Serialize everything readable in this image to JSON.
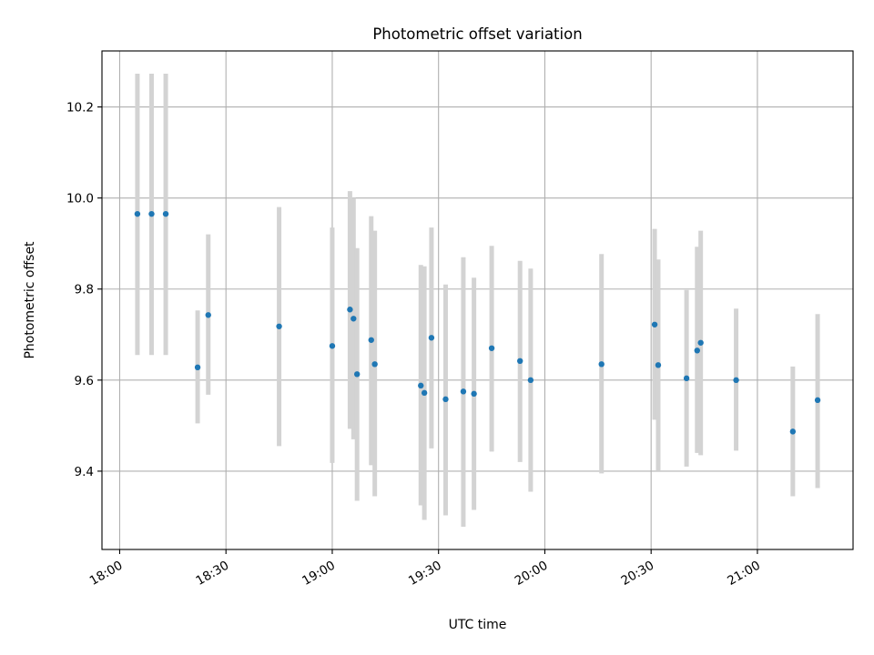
{
  "chart_data": {
    "type": "scatter",
    "title": "Photometric offset variation",
    "xlabel": "UTC time",
    "ylabel": "Photometric offset",
    "x_ticks": [
      "18:00",
      "18:30",
      "19:00",
      "19:30",
      "20:00",
      "20:30",
      "21:00"
    ],
    "x_tick_rotation_deg": 30,
    "xlim": [
      "17:55",
      "21:27"
    ],
    "y_ticks": [
      "9.4",
      "9.6",
      "9.8",
      "10.0",
      "10.2"
    ],
    "ylim": [
      9.228,
      10.323
    ],
    "grid": true,
    "colors": {
      "point": "#1f77b4",
      "errorbar": "#d3d3d3",
      "grid": "#b0b0b0",
      "axis": "#000000"
    },
    "series": [
      {
        "points": [
          {
            "x": "18:05",
            "y": 9.965,
            "low": 9.655,
            "high": 10.273
          },
          {
            "x": "18:09",
            "y": 9.965,
            "low": 9.655,
            "high": 10.273
          },
          {
            "x": "18:13",
            "y": 9.965,
            "low": 9.655,
            "high": 10.273
          },
          {
            "x": "18:22",
            "y": 9.628,
            "low": 9.505,
            "high": 9.753
          },
          {
            "x": "18:25",
            "y": 9.743,
            "low": 9.568,
            "high": 9.92
          },
          {
            "x": "18:45",
            "y": 9.718,
            "low": 9.455,
            "high": 9.98
          },
          {
            "x": "19:00",
            "y": 9.675,
            "low": 9.418,
            "high": 9.935
          },
          {
            "x": "19:05",
            "y": 9.755,
            "low": 9.493,
            "high": 10.015
          },
          {
            "x": "19:06",
            "y": 9.735,
            "low": 9.47,
            "high": 10.0
          },
          {
            "x": "19:07",
            "y": 9.613,
            "low": 9.335,
            "high": 9.89
          },
          {
            "x": "19:11",
            "y": 9.688,
            "low": 9.413,
            "high": 9.96
          },
          {
            "x": "19:12",
            "y": 9.635,
            "low": 9.345,
            "high": 9.928
          },
          {
            "x": "19:25",
            "y": 9.588,
            "low": 9.325,
            "high": 9.853
          },
          {
            "x": "19:26",
            "y": 9.572,
            "low": 9.293,
            "high": 9.85
          },
          {
            "x": "19:28",
            "y": 9.693,
            "low": 9.45,
            "high": 9.935
          },
          {
            "x": "19:32",
            "y": 9.558,
            "low": 9.303,
            "high": 9.81
          },
          {
            "x": "19:37",
            "y": 9.575,
            "low": 9.278,
            "high": 9.87
          },
          {
            "x": "19:40",
            "y": 9.57,
            "low": 9.315,
            "high": 9.825
          },
          {
            "x": "19:45",
            "y": 9.67,
            "low": 9.443,
            "high": 9.895
          },
          {
            "x": "19:53",
            "y": 9.642,
            "low": 9.42,
            "high": 9.862
          },
          {
            "x": "19:56",
            "y": 9.6,
            "low": 9.355,
            "high": 9.845
          },
          {
            "x": "20:16",
            "y": 9.635,
            "low": 9.395,
            "high": 9.877
          },
          {
            "x": "20:31",
            "y": 9.722,
            "low": 9.513,
            "high": 9.932
          },
          {
            "x": "20:32",
            "y": 9.633,
            "low": 9.4,
            "high": 9.865
          },
          {
            "x": "20:40",
            "y": 9.604,
            "low": 9.41,
            "high": 9.798
          },
          {
            "x": "20:43",
            "y": 9.665,
            "low": 9.44,
            "high": 9.893
          },
          {
            "x": "20:44",
            "y": 9.682,
            "low": 9.435,
            "high": 9.928
          },
          {
            "x": "20:54",
            "y": 9.6,
            "low": 9.445,
            "high": 9.757
          },
          {
            "x": "21:10",
            "y": 9.487,
            "low": 9.345,
            "high": 9.63
          },
          {
            "x": "21:17",
            "y": 9.556,
            "low": 9.363,
            "high": 9.745
          }
        ]
      }
    ]
  }
}
